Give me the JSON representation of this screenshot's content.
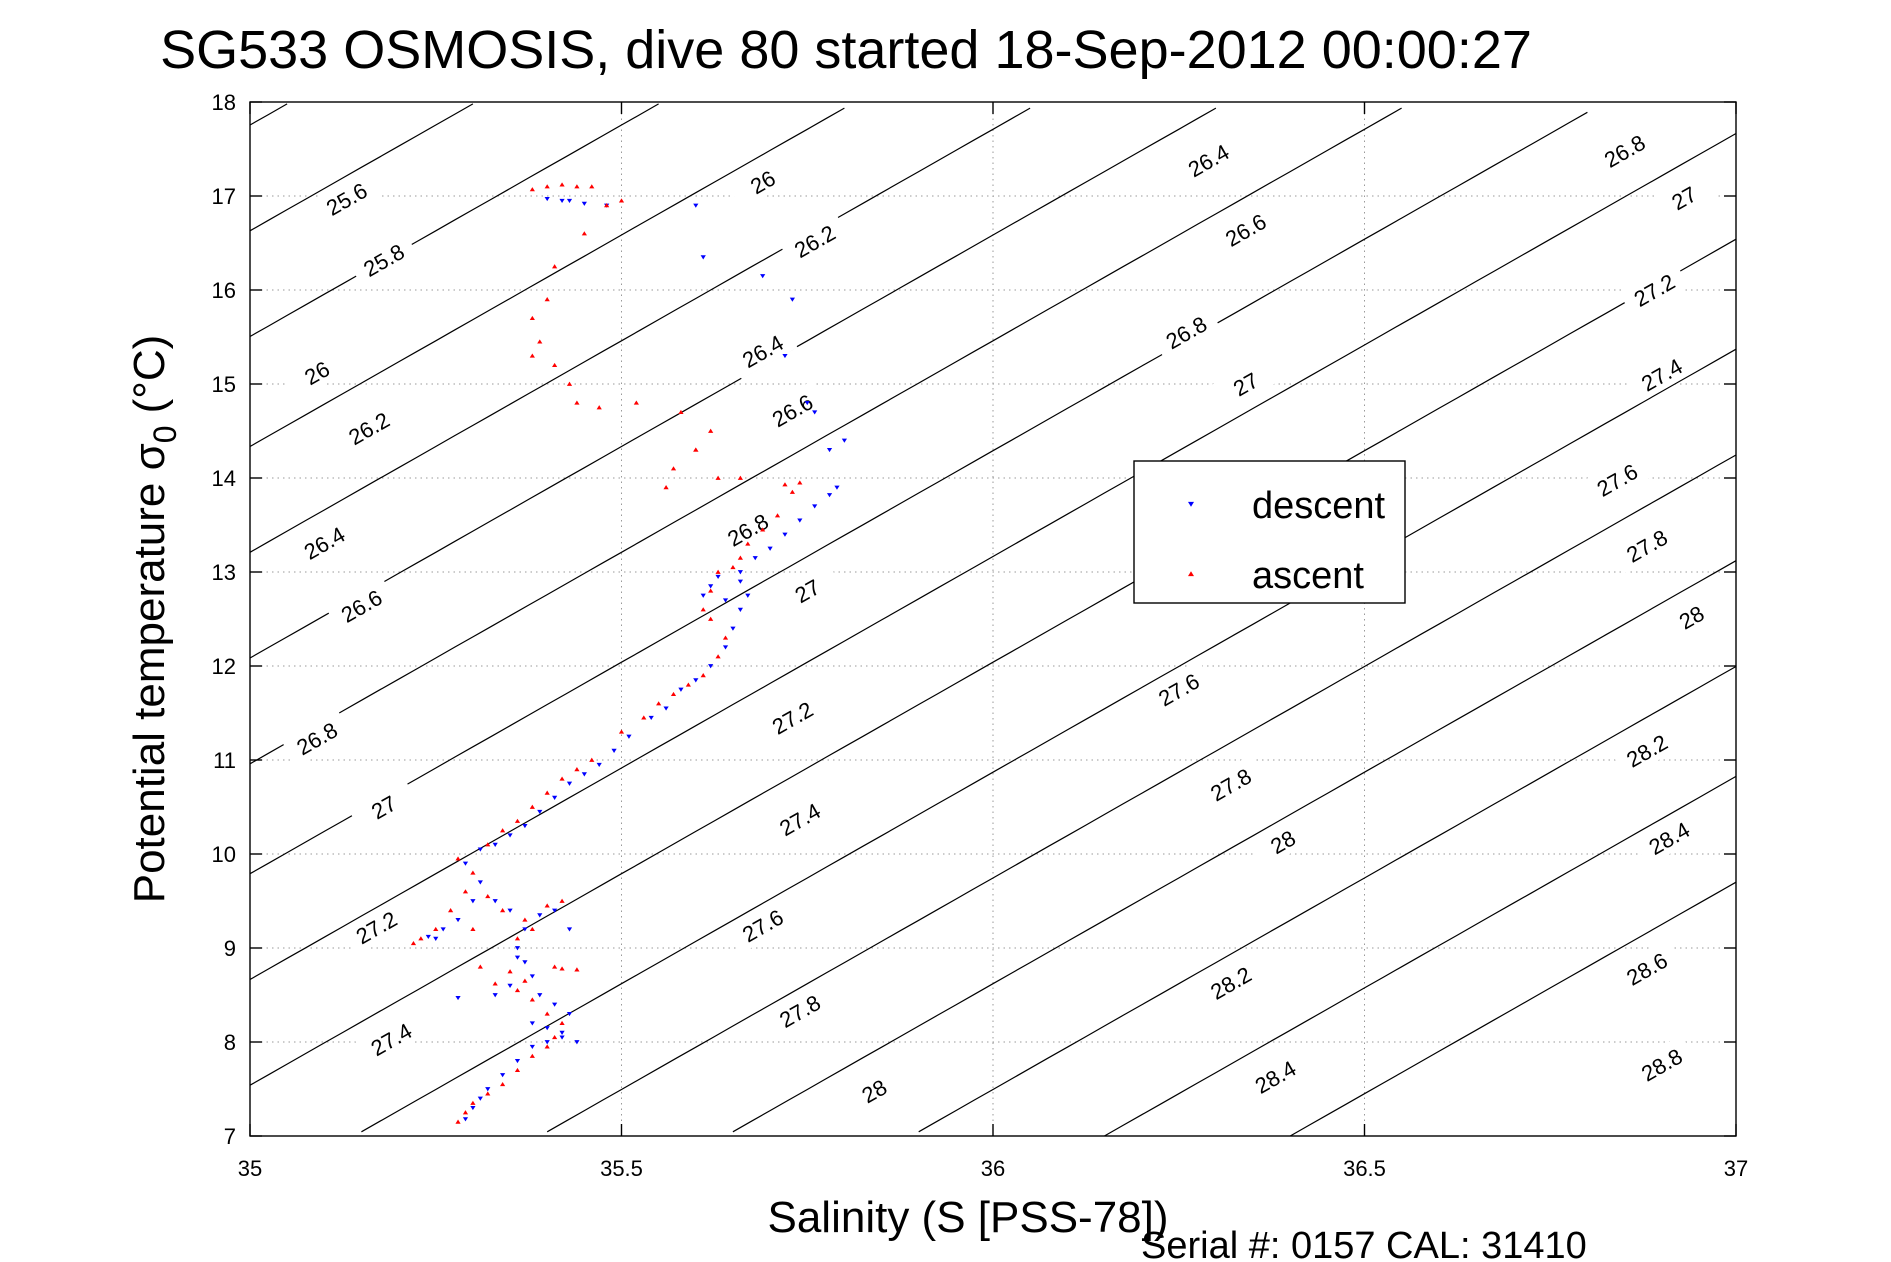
{
  "chart_data": {
    "type": "scatter",
    "title": "SG533 OSMOSIS, dive 80 started 18-Sep-2012 00:00:27",
    "xlabel": "Salinity (S [PSS-78])",
    "ylabel": "Potential temperature σ",
    "ylabel_subscript": "0",
    "ylabel_unit": "(°C)",
    "footnote": "Serial #: 0157  CAL: 31410",
    "xlim": [
      35,
      37
    ],
    "ylim": [
      7,
      18
    ],
    "x_ticks": [
      35,
      35.5,
      36,
      36.5,
      37
    ],
    "x_tick_labels": [
      "35",
      "35.5",
      "36",
      "36.5",
      "37"
    ],
    "y_ticks": [
      7,
      8,
      9,
      10,
      11,
      12,
      13,
      14,
      15,
      16,
      17,
      18
    ],
    "y_tick_labels": [
      "7",
      "8",
      "9",
      "10",
      "11",
      "12",
      "13",
      "14",
      "15",
      "16",
      "17",
      "18"
    ],
    "grid": true,
    "legend_position": "center-right",
    "contours": {
      "slope_degC_per_psu": 4.5,
      "levels": [
        {
          "value": 25.6,
          "label": "25.6",
          "s_at_7C": 32.35
        },
        {
          "value": 25.8,
          "label": "25.8",
          "s_at_7C": 32.61
        },
        {
          "value": 26.0,
          "label": "26",
          "s_at_7C": 32.86
        },
        {
          "value": 26.2,
          "label": "26.2",
          "s_at_7C": 33.11
        },
        {
          "value": 26.4,
          "label": "26.4",
          "s_at_7C": 33.37
        },
        {
          "value": 26.6,
          "label": "26.6",
          "s_at_7C": 33.62
        },
        {
          "value": 26.8,
          "label": "26.8",
          "s_at_7C": 33.87
        },
        {
          "value": 27.0,
          "label": "27",
          "s_at_7C": 34.12
        },
        {
          "value": 27.2,
          "label": "27.2",
          "s_at_7C": 34.38
        },
        {
          "value": 27.4,
          "label": "27.4",
          "s_at_7C": 34.63
        },
        {
          "value": 27.6,
          "label": "27.6",
          "s_at_7C": 34.88
        },
        {
          "value": 27.8,
          "label": "27.8",
          "s_at_7C": 35.14
        },
        {
          "value": 28.0,
          "label": "28",
          "s_at_7C": 35.39
        },
        {
          "value": 28.2,
          "label": "28.2",
          "s_at_7C": 35.64
        },
        {
          "value": 28.4,
          "label": "28.4",
          "s_at_7C": 35.89
        },
        {
          "value": 28.6,
          "label": "28.6",
          "s_at_7C": 36.15
        },
        {
          "value": 28.8,
          "label": "28.8",
          "s_at_7C": 36.4
        }
      ],
      "labels": [
        {
          "value": 25.6,
          "label": "25.6",
          "at": [
            35.13,
            16.97
          ]
        },
        {
          "value": 25.8,
          "label": "25.8",
          "at": [
            35.18,
            16.32
          ]
        },
        {
          "value": 26.0,
          "label": "26",
          "at": [
            35.09,
            15.12
          ]
        },
        {
          "value": 26.2,
          "label": "26.2",
          "at": [
            35.16,
            14.53
          ]
        },
        {
          "value": 26.4,
          "label": "26.4",
          "at": [
            35.1,
            13.31
          ]
        },
        {
          "value": 26.6,
          "label": "26.6",
          "at": [
            35.15,
            12.64
          ]
        },
        {
          "value": 26.8,
          "label": "26.8",
          "at": [
            35.09,
            11.23
          ]
        },
        {
          "value": 27.0,
          "label": "27",
          "at": [
            35.18,
            10.5
          ]
        },
        {
          "value": 27.2,
          "label": "27.2",
          "at": [
            35.17,
            9.22
          ]
        },
        {
          "value": 27.4,
          "label": "27.4",
          "at": [
            35.19,
            8.03
          ]
        },
        {
          "value": 26.0,
          "label": "26",
          "at": [
            35.69,
            17.15
          ]
        },
        {
          "value": 26.2,
          "label": "26.2",
          "at": [
            35.76,
            16.52
          ]
        },
        {
          "value": 26.4,
          "label": "26.4",
          "at": [
            35.69,
            15.35
          ]
        },
        {
          "value": 26.6,
          "label": "26.6",
          "at": [
            35.73,
            14.72
          ]
        },
        {
          "value": 26.8,
          "label": "26.8",
          "at": [
            35.67,
            13.45
          ]
        },
        {
          "value": 27.0,
          "label": "27",
          "at": [
            35.75,
            12.8
          ]
        },
        {
          "value": 27.2,
          "label": "27.2",
          "at": [
            35.73,
            11.45
          ]
        },
        {
          "value": 27.4,
          "label": "27.4",
          "at": [
            35.74,
            10.37
          ]
        },
        {
          "value": 27.6,
          "label": "27.6",
          "at": [
            35.69,
            9.24
          ]
        },
        {
          "value": 27.8,
          "label": "27.8",
          "at": [
            35.74,
            8.33
          ]
        },
        {
          "value": 28.0,
          "label": "28",
          "at": [
            35.84,
            7.48
          ]
        },
        {
          "value": 26.4,
          "label": "26.4",
          "at": [
            36.29,
            17.38
          ]
        },
        {
          "value": 26.6,
          "label": "26.6",
          "at": [
            36.34,
            16.64
          ]
        },
        {
          "value": 26.8,
          "label": "26.8",
          "at": [
            36.26,
            15.55
          ]
        },
        {
          "value": 27.0,
          "label": "27",
          "at": [
            36.34,
            15.0
          ]
        },
        {
          "value": 27.6,
          "label": "27.6",
          "at": [
            36.25,
            11.75
          ]
        },
        {
          "value": 27.8,
          "label": "27.8",
          "at": [
            36.32,
            10.74
          ]
        },
        {
          "value": 28.0,
          "label": "28",
          "at": [
            36.39,
            10.13
          ]
        },
        {
          "value": 28.2,
          "label": "28.2",
          "at": [
            36.32,
            8.63
          ]
        },
        {
          "value": 28.4,
          "label": "28.4",
          "at": [
            36.38,
            7.63
          ]
        },
        {
          "value": 26.8,
          "label": "26.8",
          "at": [
            36.85,
            17.48
          ]
        },
        {
          "value": 27.0,
          "label": "27",
          "at": [
            36.93,
            16.98
          ]
        },
        {
          "value": 27.2,
          "label": "27.2",
          "at": [
            36.89,
            16.0
          ]
        },
        {
          "value": 27.4,
          "label": "27.4",
          "at": [
            36.9,
            15.1
          ]
        },
        {
          "value": 27.6,
          "label": "27.6",
          "at": [
            36.84,
            13.98
          ]
        },
        {
          "value": 27.8,
          "label": "27.8",
          "at": [
            36.88,
            13.28
          ]
        },
        {
          "value": 28.0,
          "label": "28",
          "at": [
            36.94,
            12.52
          ]
        },
        {
          "value": 28.2,
          "label": "28.2",
          "at": [
            36.88,
            11.1
          ]
        },
        {
          "value": 28.4,
          "label": "28.4",
          "at": [
            36.91,
            10.17
          ]
        },
        {
          "value": 28.6,
          "label": "28.6",
          "at": [
            36.88,
            8.78
          ]
        },
        {
          "value": 28.8,
          "label": "28.8",
          "at": [
            36.9,
            7.76
          ]
        }
      ]
    },
    "series": [
      {
        "name": "descent",
        "marker": "down-triangle",
        "color": "#0000ff",
        "points": [
          [
            35.29,
            7.18
          ],
          [
            35.3,
            7.3
          ],
          [
            35.31,
            7.4
          ],
          [
            35.32,
            7.5
          ],
          [
            35.34,
            7.65
          ],
          [
            35.36,
            7.8
          ],
          [
            35.38,
            7.95
          ],
          [
            35.4,
            8.0
          ],
          [
            35.42,
            8.1
          ],
          [
            35.43,
            8.3
          ],
          [
            35.41,
            8.4
          ],
          [
            35.39,
            8.5
          ],
          [
            35.38,
            8.7
          ],
          [
            35.37,
            8.85
          ],
          [
            35.35,
            8.6
          ],
          [
            35.33,
            8.5
          ],
          [
            35.28,
            8.47
          ],
          [
            35.36,
            9.0
          ],
          [
            35.37,
            9.2
          ],
          [
            35.39,
            9.35
          ],
          [
            35.41,
            9.4
          ],
          [
            35.43,
            9.2
          ],
          [
            35.38,
            8.2
          ],
          [
            35.4,
            8.15
          ],
          [
            35.42,
            8.05
          ],
          [
            35.44,
            8.0
          ],
          [
            35.36,
            8.9
          ],
          [
            35.35,
            9.4
          ],
          [
            35.33,
            9.5
          ],
          [
            35.25,
            9.1
          ],
          [
            35.24,
            9.12
          ],
          [
            35.26,
            9.2
          ],
          [
            35.28,
            9.3
          ],
          [
            35.3,
            9.5
          ],
          [
            35.31,
            9.7
          ],
          [
            35.29,
            9.9
          ],
          [
            35.31,
            10.05
          ],
          [
            35.33,
            10.1
          ],
          [
            35.35,
            10.2
          ],
          [
            35.37,
            10.3
          ],
          [
            35.39,
            10.45
          ],
          [
            35.41,
            10.6
          ],
          [
            35.43,
            10.75
          ],
          [
            35.45,
            10.85
          ],
          [
            35.47,
            10.95
          ],
          [
            35.49,
            11.1
          ],
          [
            35.51,
            11.25
          ],
          [
            35.54,
            11.45
          ],
          [
            35.56,
            11.55
          ],
          [
            35.58,
            11.75
          ],
          [
            35.6,
            11.85
          ],
          [
            35.62,
            12.0
          ],
          [
            35.64,
            12.2
          ],
          [
            35.65,
            12.4
          ],
          [
            35.66,
            12.6
          ],
          [
            35.67,
            12.75
          ],
          [
            35.66,
            12.9
          ],
          [
            35.63,
            12.95
          ],
          [
            35.62,
            12.85
          ],
          [
            35.61,
            12.75
          ],
          [
            35.64,
            12.7
          ],
          [
            35.66,
            13.0
          ],
          [
            35.68,
            13.15
          ],
          [
            35.7,
            13.25
          ],
          [
            35.72,
            13.4
          ],
          [
            35.74,
            13.55
          ],
          [
            35.76,
            13.7
          ],
          [
            35.78,
            13.82
          ],
          [
            35.79,
            13.9
          ],
          [
            35.78,
            14.3
          ],
          [
            35.8,
            14.4
          ],
          [
            35.76,
            14.7
          ],
          [
            35.75,
            14.8
          ],
          [
            35.72,
            15.3
          ],
          [
            35.73,
            15.9
          ],
          [
            35.69,
            16.15
          ],
          [
            35.61,
            16.35
          ],
          [
            35.6,
            16.9
          ],
          [
            35.42,
            16.95
          ],
          [
            35.4,
            16.97
          ],
          [
            35.43,
            16.95
          ],
          [
            35.45,
            16.92
          ],
          [
            35.48,
            16.9
          ]
        ]
      },
      {
        "name": "ascent",
        "marker": "up-triangle",
        "color": "#ff0000",
        "points": [
          [
            35.28,
            7.15
          ],
          [
            35.29,
            7.25
          ],
          [
            35.3,
            7.35
          ],
          [
            35.32,
            7.45
          ],
          [
            35.34,
            7.55
          ],
          [
            35.36,
            7.7
          ],
          [
            35.38,
            7.85
          ],
          [
            35.4,
            7.95
          ],
          [
            35.41,
            8.05
          ],
          [
            35.42,
            8.2
          ],
          [
            35.4,
            8.3
          ],
          [
            35.38,
            8.45
          ],
          [
            35.36,
            8.55
          ],
          [
            35.33,
            8.62
          ],
          [
            35.31,
            8.8
          ],
          [
            35.35,
            8.75
          ],
          [
            35.37,
            8.65
          ],
          [
            35.41,
            8.8
          ],
          [
            35.42,
            8.78
          ],
          [
            35.44,
            8.77
          ],
          [
            35.36,
            9.1
          ],
          [
            35.38,
            9.2
          ],
          [
            35.4,
            9.45
          ],
          [
            35.42,
            9.5
          ],
          [
            35.37,
            9.3
          ],
          [
            35.34,
            9.4
          ],
          [
            35.32,
            9.55
          ],
          [
            35.3,
            9.2
          ],
          [
            35.22,
            9.05
          ],
          [
            35.23,
            9.1
          ],
          [
            35.25,
            9.2
          ],
          [
            35.27,
            9.4
          ],
          [
            35.29,
            9.6
          ],
          [
            35.3,
            9.8
          ],
          [
            35.28,
            9.95
          ],
          [
            35.32,
            10.1
          ],
          [
            35.34,
            10.25
          ],
          [
            35.36,
            10.35
          ],
          [
            35.38,
            10.5
          ],
          [
            35.4,
            10.65
          ],
          [
            35.42,
            10.8
          ],
          [
            35.44,
            10.9
          ],
          [
            35.46,
            11.0
          ],
          [
            35.5,
            11.3
          ],
          [
            35.53,
            11.45
          ],
          [
            35.55,
            11.6
          ],
          [
            35.57,
            11.7
          ],
          [
            35.59,
            11.8
          ],
          [
            35.61,
            11.9
          ],
          [
            35.63,
            12.1
          ],
          [
            35.64,
            12.3
          ],
          [
            35.62,
            12.5
          ],
          [
            35.61,
            12.6
          ],
          [
            35.62,
            12.8
          ],
          [
            35.63,
            13.0
          ],
          [
            35.65,
            13.05
          ],
          [
            35.66,
            13.15
          ],
          [
            35.67,
            13.3
          ],
          [
            35.69,
            13.45
          ],
          [
            35.71,
            13.6
          ],
          [
            35.73,
            13.85
          ],
          [
            35.74,
            13.95
          ],
          [
            35.72,
            13.93
          ],
          [
            35.66,
            14.0
          ],
          [
            35.63,
            14.0
          ],
          [
            35.56,
            13.9
          ],
          [
            35.57,
            14.1
          ],
          [
            35.6,
            14.3
          ],
          [
            35.62,
            14.5
          ],
          [
            35.58,
            14.7
          ],
          [
            35.6,
            14.3
          ],
          [
            35.52,
            14.8
          ],
          [
            35.47,
            14.75
          ],
          [
            35.44,
            14.8
          ],
          [
            35.43,
            15.0
          ],
          [
            35.41,
            15.2
          ],
          [
            35.38,
            15.3
          ],
          [
            35.39,
            15.45
          ],
          [
            35.38,
            15.7
          ],
          [
            35.4,
            15.9
          ],
          [
            35.41,
            16.25
          ],
          [
            35.45,
            16.6
          ],
          [
            35.48,
            16.9
          ],
          [
            35.5,
            16.95
          ],
          [
            35.38,
            17.07
          ],
          [
            35.4,
            17.1
          ],
          [
            35.42,
            17.12
          ],
          [
            35.44,
            17.1
          ],
          [
            35.46,
            17.1
          ]
        ]
      }
    ]
  }
}
